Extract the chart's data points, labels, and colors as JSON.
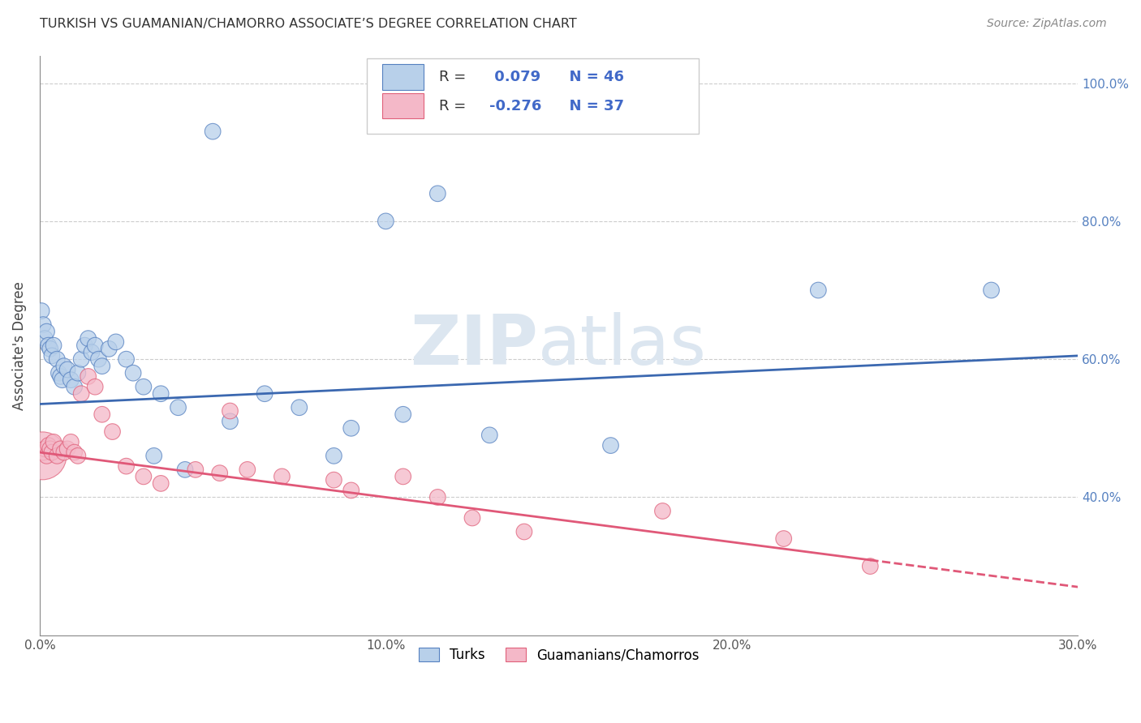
{
  "title": "TURKISH VS GUAMANIAN/CHAMORRO ASSOCIATE’S DEGREE CORRELATION CHART",
  "source": "Source: ZipAtlas.com",
  "ylabel": "Associate's Degree",
  "r_turks": 0.079,
  "n_turks": 46,
  "r_guam": -0.276,
  "n_guam": 37,
  "legend_turks": "Turks",
  "legend_guam": "Guamanians/Chamorros",
  "color_turks": "#b8d0ea",
  "color_guam": "#f4b8c8",
  "color_edge_turks": "#5580c0",
  "color_edge_guam": "#e0607a",
  "color_line_turks": "#3b68b0",
  "color_line_guam": "#e05878",
  "background_color": "#ffffff",
  "watermark_zip": "ZIP",
  "watermark_atlas": "atlas",
  "watermark_color": "#dce6f0",
  "xlim": [
    0.0,
    30.0
  ],
  "ylim": [
    20.0,
    104.0
  ],
  "yticks": [
    40.0,
    60.0,
    80.0,
    100.0
  ],
  "xticks": [
    0.0,
    10.0,
    20.0,
    30.0
  ],
  "turks_x": [
    0.05,
    0.1,
    0.15,
    0.2,
    0.25,
    0.3,
    0.35,
    0.4,
    0.5,
    0.55,
    0.6,
    0.65,
    0.7,
    0.8,
    0.9,
    1.0,
    1.1,
    1.2,
    1.3,
    1.4,
    1.5,
    1.6,
    1.7,
    1.8,
    2.0,
    2.2,
    2.5,
    2.7,
    3.0,
    3.5,
    4.0,
    5.5,
    6.5,
    7.5,
    9.0,
    10.5,
    13.0,
    16.5,
    22.5,
    10.0,
    11.5,
    5.0,
    3.3,
    8.5,
    27.5,
    4.2
  ],
  "turks_y": [
    67.0,
    65.0,
    63.0,
    64.0,
    62.0,
    61.5,
    60.5,
    62.0,
    60.0,
    58.0,
    57.5,
    57.0,
    59.0,
    58.5,
    57.0,
    56.0,
    58.0,
    60.0,
    62.0,
    63.0,
    61.0,
    62.0,
    60.0,
    59.0,
    61.5,
    62.5,
    60.0,
    58.0,
    56.0,
    55.0,
    53.0,
    51.0,
    55.0,
    53.0,
    50.0,
    52.0,
    49.0,
    47.5,
    70.0,
    80.0,
    84.0,
    93.0,
    46.0,
    46.0,
    70.0,
    44.0
  ],
  "guam_x": [
    0.08,
    0.1,
    0.15,
    0.2,
    0.25,
    0.3,
    0.35,
    0.4,
    0.5,
    0.6,
    0.7,
    0.8,
    0.9,
    1.0,
    1.1,
    1.2,
    1.4,
    1.6,
    1.8,
    2.1,
    2.5,
    3.0,
    3.5,
    4.5,
    5.2,
    6.0,
    7.0,
    8.5,
    10.5,
    11.5,
    12.5,
    14.0,
    18.0,
    21.5,
    24.0,
    5.5,
    9.0
  ],
  "guam_y": [
    46.0,
    46.5,
    47.0,
    46.0,
    47.5,
    47.0,
    46.5,
    48.0,
    46.0,
    47.0,
    46.5,
    47.0,
    48.0,
    46.5,
    46.0,
    55.0,
    57.5,
    56.0,
    52.0,
    49.5,
    44.5,
    43.0,
    42.0,
    44.0,
    43.5,
    44.0,
    43.0,
    42.5,
    43.0,
    40.0,
    37.0,
    35.0,
    38.0,
    34.0,
    30.0,
    52.5,
    41.0
  ],
  "turks_sizes": [
    200,
    200,
    200,
    200,
    200,
    200,
    200,
    200,
    200,
    200,
    200,
    200,
    200,
    200,
    200,
    200,
    200,
    200,
    200,
    200,
    200,
    200,
    200,
    200,
    200,
    200,
    200,
    200,
    200,
    200,
    200,
    200,
    200,
    200,
    200,
    200,
    200,
    200,
    200,
    200,
    200,
    200,
    200,
    200,
    200,
    200
  ],
  "guam_sizes": [
    1800,
    200,
    200,
    200,
    200,
    200,
    200,
    200,
    200,
    200,
    200,
    200,
    200,
    200,
    200,
    200,
    200,
    200,
    200,
    200,
    200,
    200,
    200,
    200,
    200,
    200,
    200,
    200,
    200,
    200,
    200,
    200,
    200,
    200,
    200,
    200,
    200
  ],
  "blue_line_x0": 0.0,
  "blue_line_y0": 53.5,
  "blue_line_x1": 30.0,
  "blue_line_y1": 60.5,
  "pink_line_x0": 0.0,
  "pink_line_y0": 46.5,
  "pink_line_x1": 30.0,
  "pink_line_y1": 27.0,
  "pink_solid_end": 24.0
}
